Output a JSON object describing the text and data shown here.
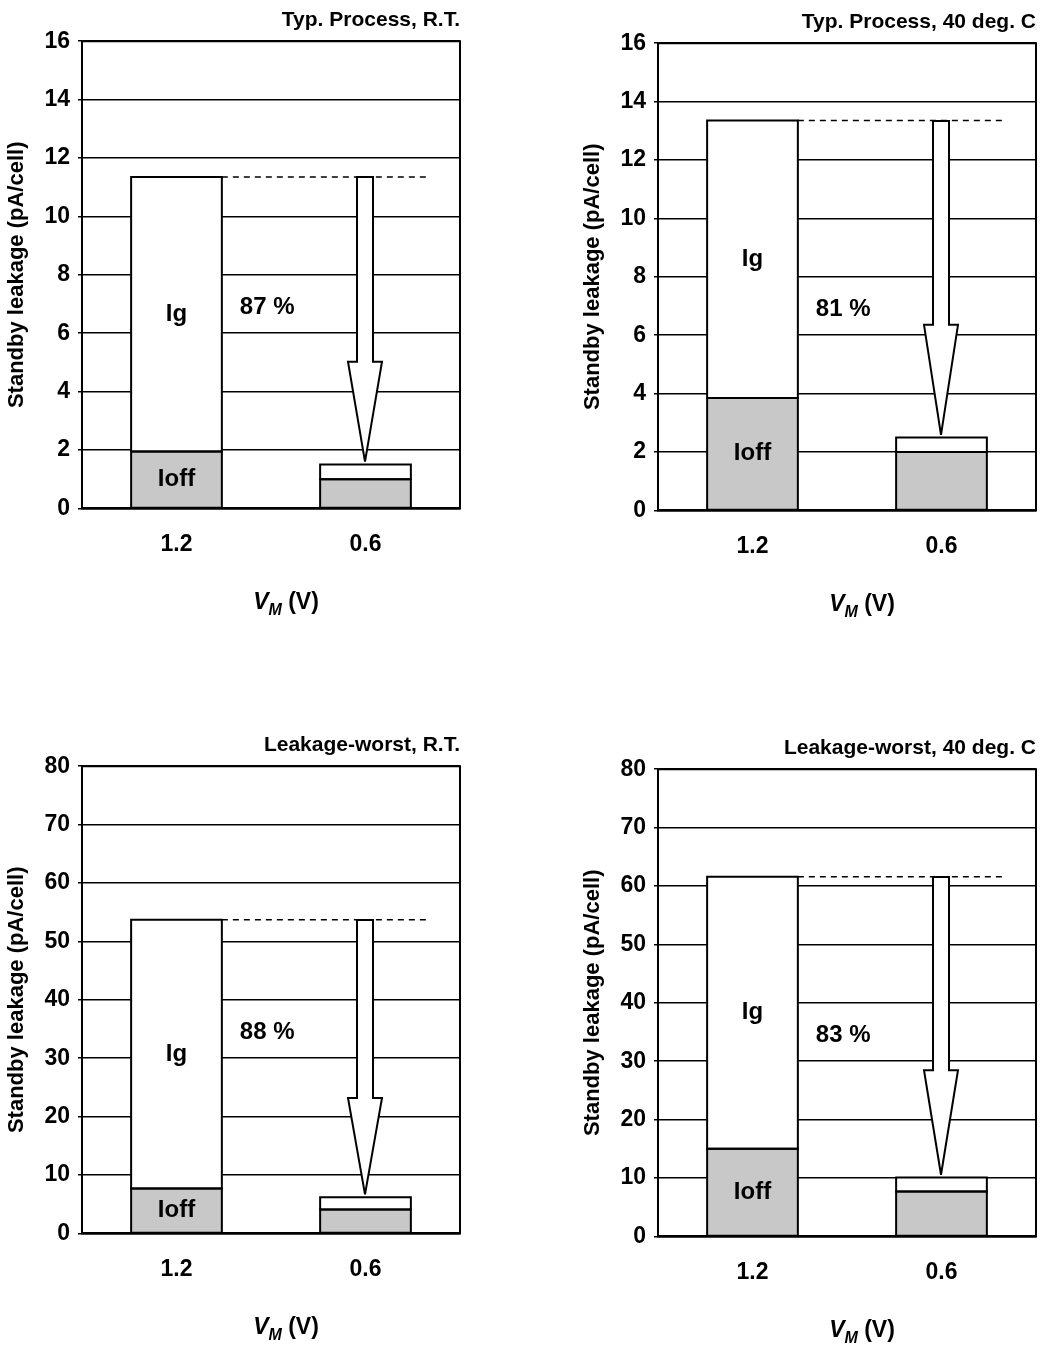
{
  "chart_data": [
    {
      "type": "bar",
      "stacked": true,
      "title": "Typ. Process, R.T.",
      "xlabel": "V$_{M}$ (V)",
      "ylabel": "Standby leakage (pA/cell)",
      "categories": [
        "1.2",
        "0.6"
      ],
      "ylim": [
        0,
        16
      ],
      "yticks": [
        0,
        2,
        4,
        6,
        8,
        10,
        12,
        14,
        16
      ],
      "grid": "y",
      "series": [
        {
          "name": "Ioff",
          "color": "#c8c8c8",
          "values": [
            1.95,
            1.0
          ]
        },
        {
          "name": "Ig",
          "color": "#ffffff",
          "values": [
            9.4,
            0.5
          ]
        }
      ],
      "ref_lines": [
        {
          "axis": "y",
          "value": 11.35,
          "color": "#000000",
          "line_style": "dashed"
        }
      ],
      "annotations": [
        "87 %"
      ]
    },
    {
      "type": "bar",
      "stacked": true,
      "title": "Typ. Process, 40 deg. C",
      "xlabel": "V$_{M}$ (V)",
      "ylabel": "Standby leakage (pA/cell)",
      "categories": [
        "1.2",
        "0.6"
      ],
      "ylim": [
        0,
        16
      ],
      "yticks": [
        0,
        2,
        4,
        6,
        8,
        10,
        12,
        14,
        16
      ],
      "grid": "y",
      "series": [
        {
          "name": "Ioff",
          "color": "#c8c8c8",
          "values": [
            3.85,
            2.0
          ]
        },
        {
          "name": "Ig",
          "color": "#ffffff",
          "values": [
            9.5,
            0.5
          ]
        }
      ],
      "ref_lines": [
        {
          "axis": "y",
          "value": 13.35,
          "color": "#000000",
          "line_style": "dashed"
        }
      ],
      "annotations": [
        "81 %"
      ]
    },
    {
      "type": "bar",
      "stacked": true,
      "title": "Leakage-worst, R.T.",
      "xlabel": "V$_{M}$ (V)",
      "ylabel": "Standby leakage (pA/cell)",
      "categories": [
        "1.2",
        "0.6"
      ],
      "ylim": [
        0,
        80
      ],
      "yticks": [
        0,
        10,
        20,
        30,
        40,
        50,
        60,
        70,
        80
      ],
      "grid": "y",
      "series": [
        {
          "name": "Ioff",
          "color": "#c8c8c8",
          "values": [
            7.7,
            4.1
          ]
        },
        {
          "name": "Ig",
          "color": "#ffffff",
          "values": [
            46.0,
            2.1
          ]
        }
      ],
      "ref_lines": [
        {
          "axis": "y",
          "value": 53.7,
          "color": "#000000",
          "line_style": "dashed"
        }
      ],
      "annotations": [
        "88 %"
      ]
    },
    {
      "type": "bar",
      "stacked": true,
      "title": "Leakage-worst, 40 deg. C",
      "xlabel": "V$_{M}$ (V)",
      "ylabel": "Standby leakage (pA/cell)",
      "categories": [
        "1.2",
        "0.6"
      ],
      "ylim": [
        0,
        80
      ],
      "yticks": [
        0,
        10,
        20,
        30,
        40,
        50,
        60,
        70,
        80
      ],
      "grid": "y",
      "series": [
        {
          "name": "Ioff",
          "color": "#c8c8c8",
          "values": [
            15,
            7.7
          ]
        },
        {
          "name": "Ig",
          "color": "#ffffff",
          "values": [
            46.6,
            2.4
          ]
        }
      ],
      "ref_lines": [
        {
          "axis": "y",
          "value": 61.6,
          "color": "#000000",
          "line_style": "dashed"
        }
      ],
      "annotations": [
        "83 %"
      ]
    }
  ]
}
